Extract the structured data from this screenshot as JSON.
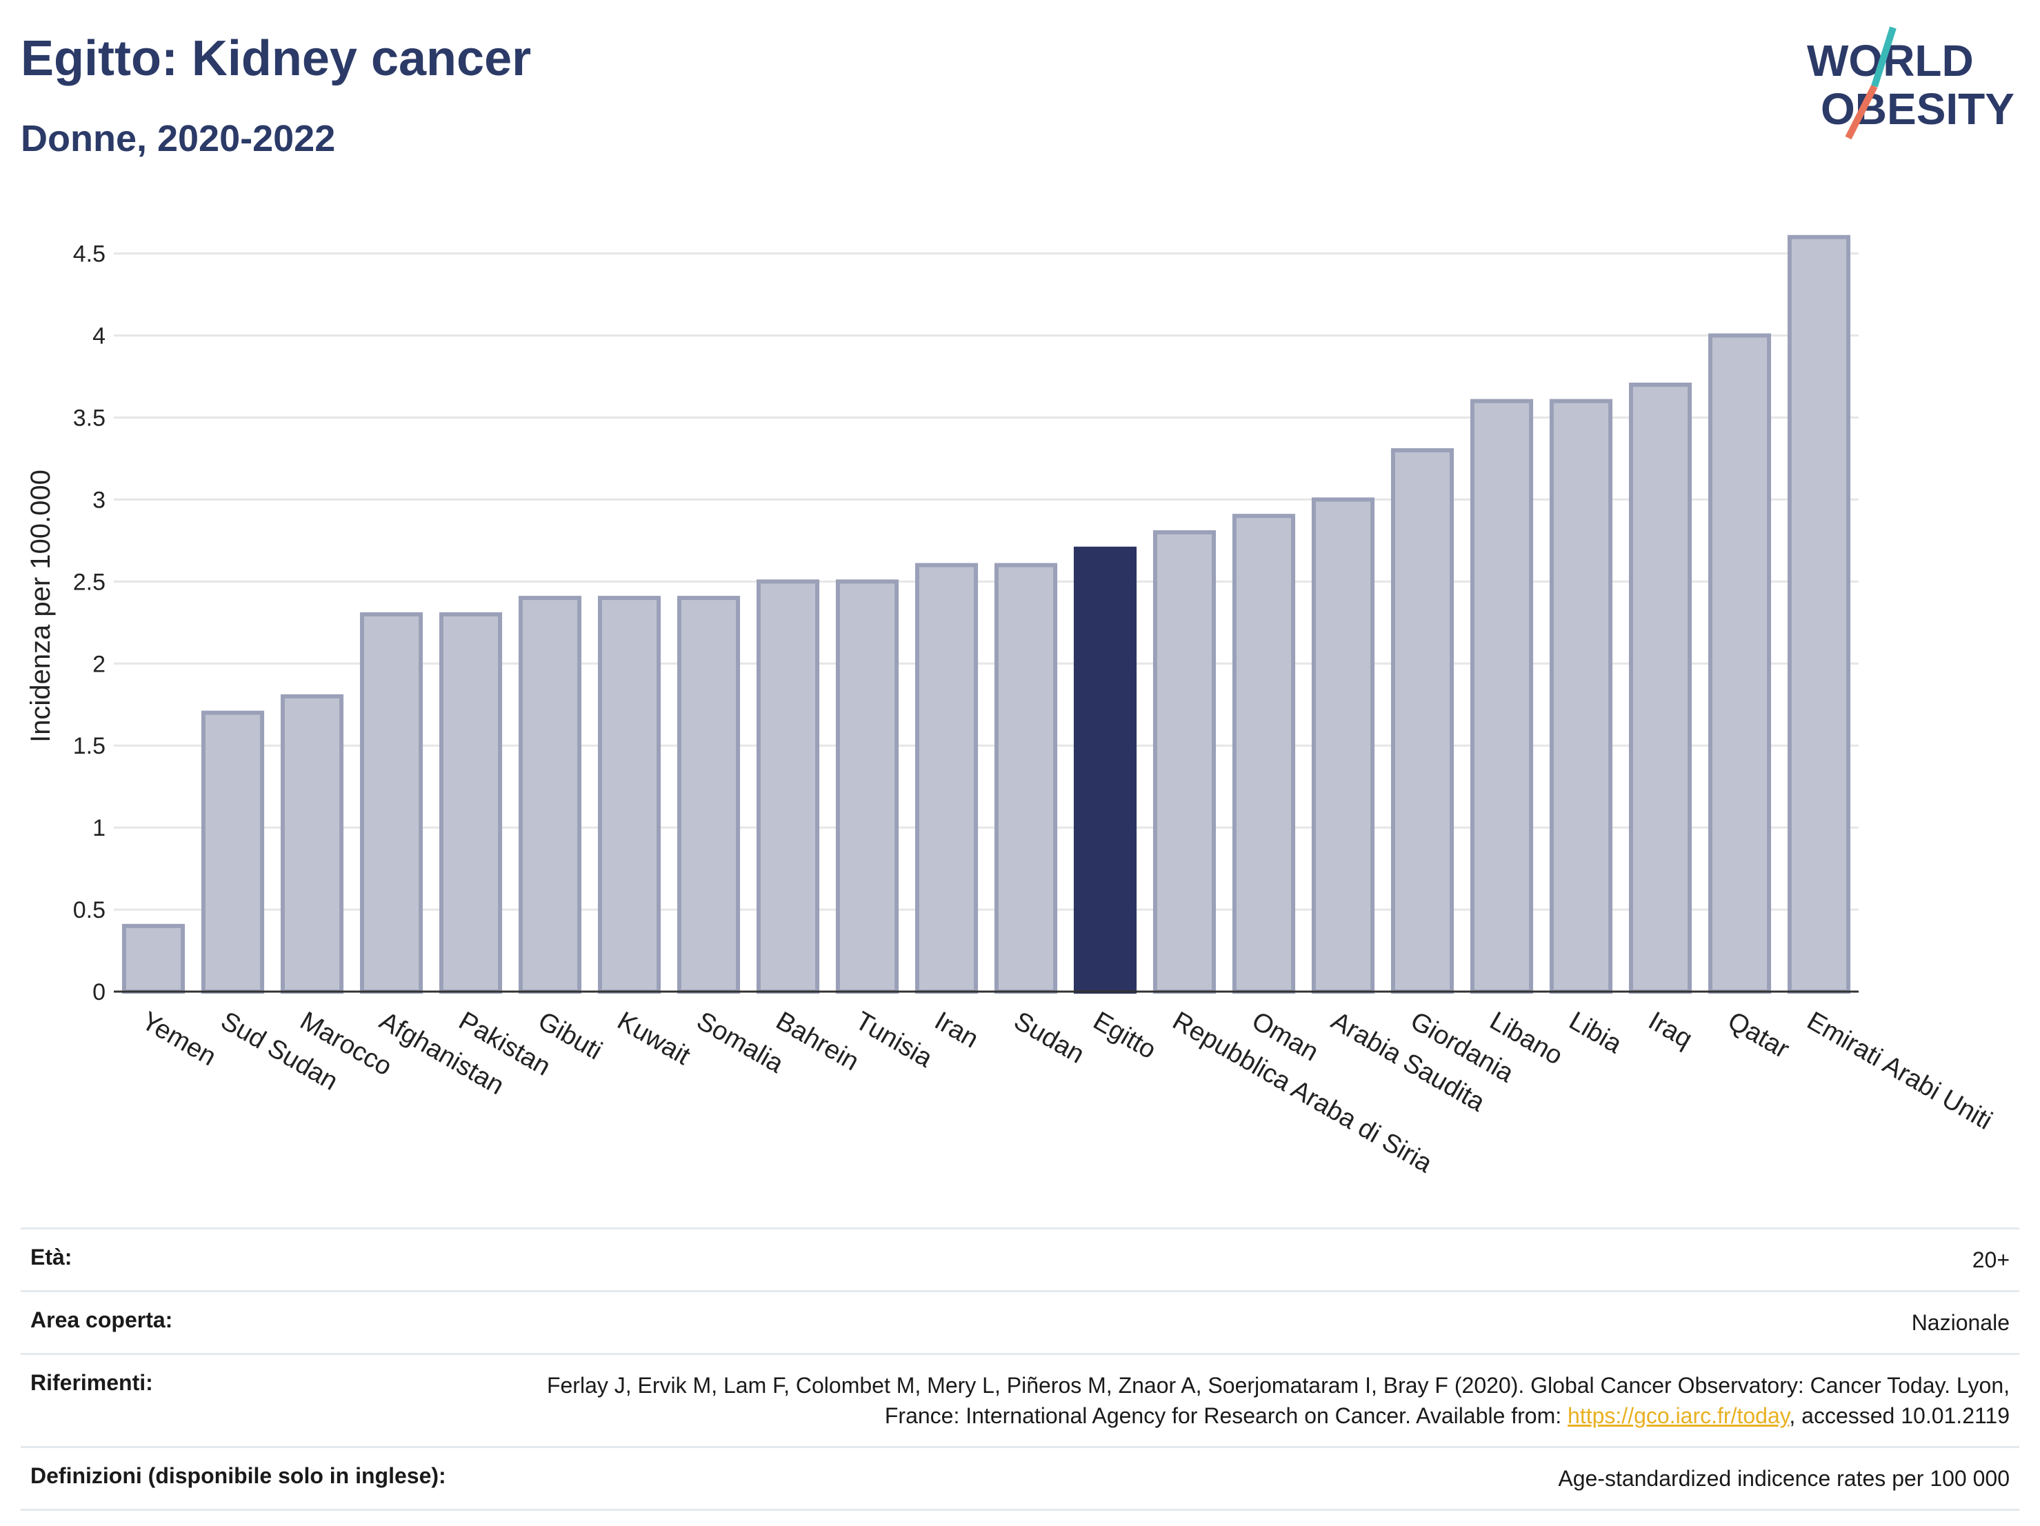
{
  "header": {
    "title": "Egitto: Kidney cancer",
    "subtitle": "Donne, 2020-2022"
  },
  "logo": {
    "line1": "WORLD",
    "line2": "OBESITY"
  },
  "chart_data": {
    "type": "bar",
    "categories": [
      "Yemen",
      "Sud Sudan",
      "Marocco",
      "Afghanistan",
      "Pakistan",
      "Gibuti",
      "Kuwait",
      "Somalia",
      "Bahrein",
      "Tunisia",
      "Iran",
      "Sudan",
      "Egitto",
      "Repubblica Araba di Siria",
      "Oman",
      "Arabia Saudita",
      "Giordania",
      "Libano",
      "Libia",
      "Iraq",
      "Qatar",
      "Emirati Arabi Uniti"
    ],
    "values": [
      0.4,
      1.7,
      1.8,
      2.3,
      2.3,
      2.4,
      2.4,
      2.4,
      2.5,
      2.5,
      2.6,
      2.6,
      2.7,
      2.8,
      2.9,
      3.0,
      3.3,
      3.6,
      3.6,
      3.7,
      4.0,
      4.6
    ],
    "highlight": "Egitto",
    "ylabel": "Incidenza per 100.000",
    "ylim": [
      0,
      4.7
    ],
    "yticks": [
      "0",
      "0.5",
      "1",
      "1.5",
      "2",
      "2.5",
      "3",
      "3.5",
      "4",
      "4.5"
    ],
    "grid": true,
    "colors": {
      "bar": "#bfc3d1",
      "bar_border": "#9aa0b8",
      "highlight": "#2b3461",
      "grid": "#e6e6e6",
      "axis": "#333333"
    }
  },
  "meta": [
    {
      "label": "Età:",
      "value": "20+"
    },
    {
      "label": "Area coperta:",
      "value": "Nazionale"
    },
    {
      "label": "Riferimenti:",
      "value_pre": "Ferlay J, Ervik M, Lam F, Colombet M, Mery L, Piñeros M, Znaor A, Soerjomataram I, Bray F (2020). Global Cancer Observatory: Cancer Today. Lyon, France: International Agency for Research on Cancer. Available from: ",
      "link": "https://gco.iarc.fr/today",
      "value_post": ", accessed 10.01.2119"
    },
    {
      "label": "Definizioni (disponibile solo in inglese):",
      "value": "Age-standardized indicence rates per 100 000"
    }
  ]
}
